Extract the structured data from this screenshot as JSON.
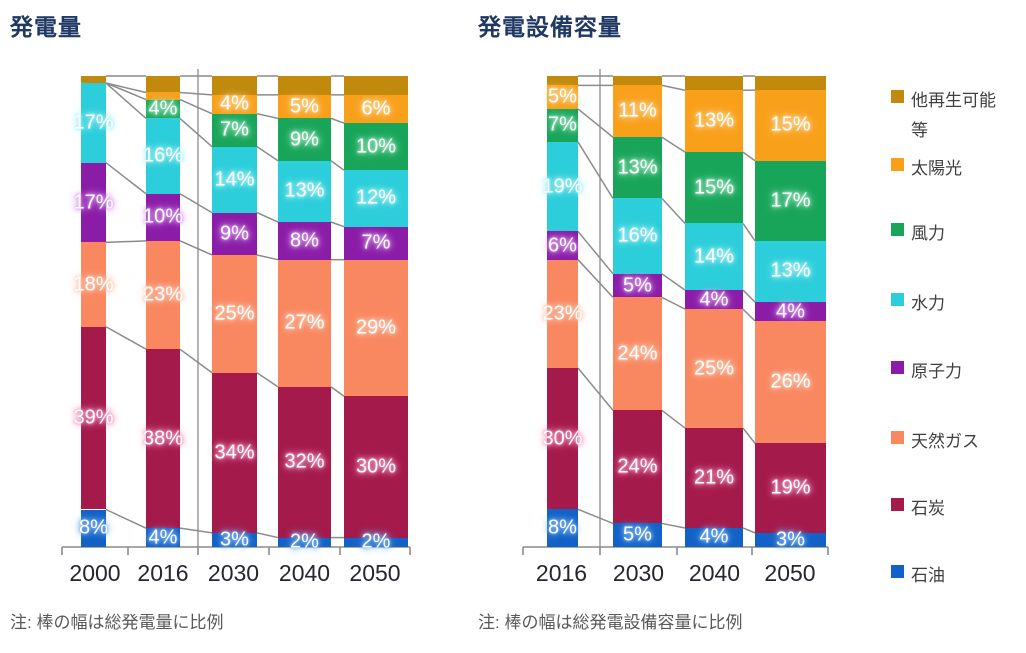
{
  "page": {
    "background": "#ffffff",
    "line_color": "#8B8B8B"
  },
  "chart_data": [
    {
      "type": "bar",
      "stacked": true,
      "variant": "mekko-variable-width",
      "title": "発電量",
      "note": "注: 棒の幅は総発電量に比例",
      "unit": "%",
      "ylim": [
        0,
        100
      ],
      "grid": false,
      "categories": [
        "2000",
        "2016",
        "2030",
        "2040",
        "2050"
      ],
      "stack_direction": "bottom-to-top",
      "series": [
        {
          "key": "oil",
          "name": "石油",
          "color": "#1261C7",
          "glow": "#7FB2F2",
          "values": [
            8,
            4,
            3,
            2,
            2
          ],
          "labels": [
            "8%",
            "4%",
            "3%",
            "2%",
            "2%"
          ]
        },
        {
          "key": "coal",
          "name": "石炭",
          "color": "#A41A4A",
          "glow": "#F096BC",
          "values": [
            39,
            38,
            34,
            32,
            30
          ],
          "labels": [
            "39%",
            "38%",
            "34%",
            "32%",
            "30%"
          ]
        },
        {
          "key": "gas",
          "name": "天然ガス",
          "color": "#F9875F",
          "glow": "#FFC7B0",
          "values": [
            18,
            23,
            25,
            27,
            29
          ],
          "labels": [
            "18%",
            "23%",
            "25%",
            "27%",
            "29%"
          ]
        },
        {
          "key": "nuclear",
          "name": "原子力",
          "color": "#8A1CA8",
          "glow": "#D79BE8",
          "values": [
            17,
            10,
            9,
            8,
            7
          ],
          "labels": [
            "17%",
            "10%",
            "9%",
            "8%",
            "7%"
          ]
        },
        {
          "key": "hydro",
          "name": "水力",
          "color": "#2BCEDA",
          "glow": "#A5EEF4",
          "values": [
            17,
            16,
            14,
            13,
            12
          ],
          "labels": [
            "17%",
            "16%",
            "14%",
            "13%",
            "12%"
          ]
        },
        {
          "key": "wind",
          "name": "風力",
          "color": "#18A55A",
          "glow": "#98E2B9",
          "values": [
            0,
            4,
            7,
            9,
            10
          ],
          "labels": [
            null,
            "4%",
            "7%",
            "9%",
            "10%"
          ]
        },
        {
          "key": "solar",
          "name": "太陽光",
          "color": "#F9A01B",
          "glow": "#FFD494",
          "values": [
            0,
            1.5,
            4,
            5,
            6
          ],
          "labels": [
            null,
            null,
            "4%",
            "5%",
            "6%"
          ]
        },
        {
          "key": "other_renewables",
          "name": "他再生可能等",
          "color": "#C18A0D",
          "glow": null,
          "values": [
            1.5,
            3.5,
            4,
            4,
            4
          ],
          "labels": [
            null,
            null,
            null,
            null,
            null
          ]
        }
      ]
    },
    {
      "type": "bar",
      "stacked": true,
      "variant": "mekko-variable-width",
      "title": "発電設備容量",
      "note": "注: 棒の幅は総発電設備容量に比例",
      "unit": "%",
      "ylim": [
        0,
        100
      ],
      "grid": false,
      "categories": [
        "2016",
        "2030",
        "2040",
        "2050"
      ],
      "stack_direction": "bottom-to-top",
      "series": [
        {
          "key": "oil",
          "name": "石油",
          "color": "#1261C7",
          "glow": "#7FB2F2",
          "values": [
            8,
            5,
            4,
            3
          ],
          "labels": [
            "8%",
            "5%",
            "4%",
            "3%"
          ]
        },
        {
          "key": "coal",
          "name": "石炭",
          "color": "#A41A4A",
          "glow": "#F096BC",
          "values": [
            30,
            24,
            21,
            19
          ],
          "labels": [
            "30%",
            "24%",
            "21%",
            "19%"
          ]
        },
        {
          "key": "gas",
          "name": "天然ガス",
          "color": "#F9875F",
          "glow": "#FFC7B0",
          "values": [
            23,
            24,
            25,
            26
          ],
          "labels": [
            "23%",
            "24%",
            "25%",
            "26%"
          ]
        },
        {
          "key": "nuclear",
          "name": "原子力",
          "color": "#8A1CA8",
          "glow": "#D79BE8",
          "values": [
            6,
            5,
            4,
            4
          ],
          "labels": [
            "6%",
            "5%",
            "4%",
            "4%"
          ]
        },
        {
          "key": "hydro",
          "name": "水力",
          "color": "#2BCEDA",
          "glow": "#A5EEF4",
          "values": [
            19,
            16,
            14,
            13
          ],
          "labels": [
            "19%",
            "16%",
            "14%",
            "13%"
          ]
        },
        {
          "key": "wind",
          "name": "風力",
          "color": "#18A55A",
          "glow": "#98E2B9",
          "values": [
            7,
            13,
            15,
            17
          ],
          "labels": [
            "7%",
            "13%",
            "15%",
            "17%"
          ]
        },
        {
          "key": "solar",
          "name": "太陽光",
          "color": "#F9A01B",
          "glow": "#FFD494",
          "values": [
            5,
            11,
            13,
            15
          ],
          "labels": [
            "5%",
            "11%",
            "13%",
            "15%"
          ]
        },
        {
          "key": "other_renewables",
          "name": "他再生可能等",
          "color": "#C18A0D",
          "glow": null,
          "values": [
            2,
            2,
            3,
            3
          ],
          "labels": [
            null,
            null,
            null,
            null
          ]
        }
      ]
    }
  ],
  "legend": {
    "position": "right",
    "items": [
      {
        "key": "other_renewables",
        "label": "他再生可能等",
        "color": "#C18A0D"
      },
      {
        "key": "solar",
        "label": "太陽光",
        "color": "#F9A01B"
      },
      {
        "key": "wind",
        "label": "風力",
        "color": "#18A55A"
      },
      {
        "key": "hydro",
        "label": "水力",
        "color": "#2BCEDA"
      },
      {
        "key": "nuclear",
        "label": "原子力",
        "color": "#8A1CA8"
      },
      {
        "key": "gas",
        "label": "天然ガス",
        "color": "#F9875F"
      },
      {
        "key": "coal",
        "label": "石炭",
        "color": "#A41A4A"
      },
      {
        "key": "oil",
        "label": "石油",
        "color": "#1261C7"
      }
    ]
  }
}
